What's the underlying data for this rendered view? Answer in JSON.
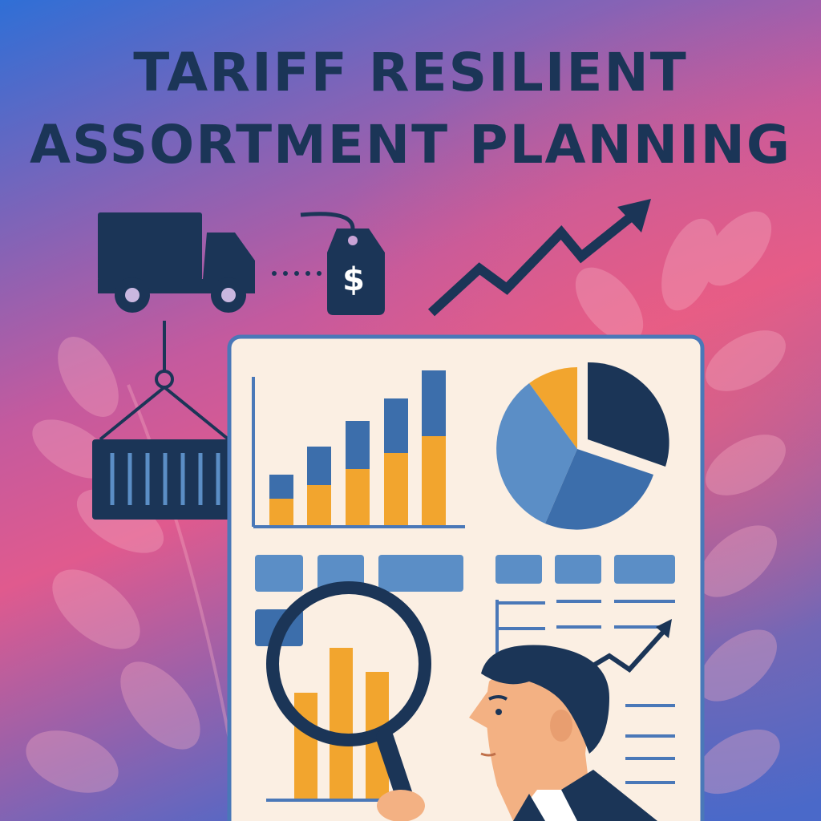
{
  "title": {
    "line1": "TARIFF RESILIENT",
    "line2": "ASSORTMENT PLANNING"
  },
  "price_tag": {
    "symbol": "$"
  },
  "colors": {
    "navy": "#1b3557",
    "blue": "#3c6eab",
    "light_blue": "#5b8ec6",
    "orange": "#f2a52e",
    "panel": "#fbefe3",
    "skin": "#f3b183",
    "gradient_top": "#2f6fd6",
    "gradient_mid": "#e05a8e",
    "gradient_bottom": "#4a69c9"
  },
  "icons": [
    "truck-icon",
    "price-tag-icon",
    "trend-arrow-icon",
    "shipping-container-icon",
    "magnifier-icon",
    "leaf-icon"
  ]
}
